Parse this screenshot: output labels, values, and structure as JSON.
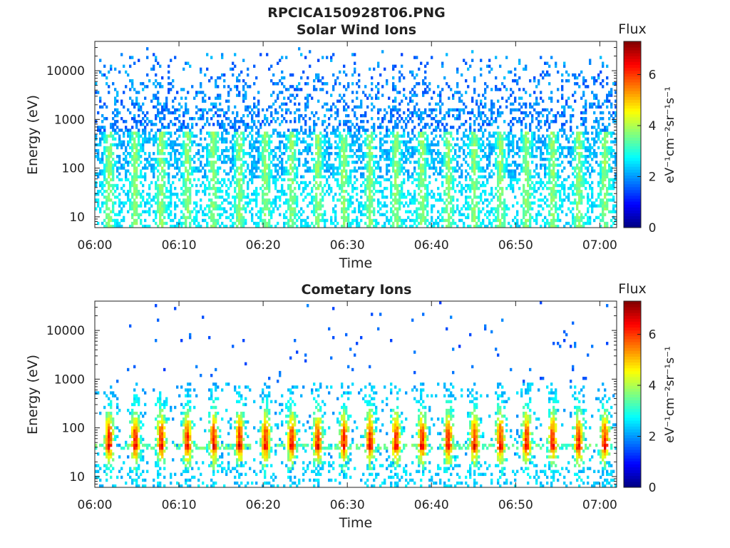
{
  "figure_title": "RPCICA150928T06.PNG",
  "chart_data": [
    {
      "type": "heatmap",
      "title": "Solar Wind Ions",
      "xlabel": "Time",
      "ylabel": "Energy (eV)",
      "x_ticks": [
        "06:00",
        "06:10",
        "06:20",
        "06:30",
        "06:40",
        "06:50",
        "07:00"
      ],
      "x_range_minutes": [
        0,
        62
      ],
      "y_ticks": [
        "10",
        "100",
        "1000",
        "10000"
      ],
      "y_tick_values": [
        10,
        100,
        1000,
        10000
      ],
      "y_scale": "log",
      "y_range": [
        6,
        40000
      ],
      "colorbar": {
        "label": "Flux",
        "unit": "eV⁻¹cm⁻²sr⁻¹s⁻¹",
        "ticks": [
          "0",
          "2",
          "4",
          "6"
        ],
        "range": [
          0,
          7.3
        ],
        "colormap": "jet"
      },
      "pattern": {
        "pulse_period_min": 3.1,
        "pulse_phase_min": 0.9,
        "peak_flux": 3.9,
        "background_flux": 2.0,
        "low_energy_floor": 6
      }
    },
    {
      "type": "heatmap",
      "title": "Cometary Ions",
      "xlabel": "Time",
      "ylabel": "Energy (eV)",
      "x_ticks": [
        "06:00",
        "06:10",
        "06:20",
        "06:30",
        "06:40",
        "06:50",
        "07:00"
      ],
      "x_range_minutes": [
        0,
        62
      ],
      "y_ticks": [
        "10",
        "100",
        "1000",
        "10000"
      ],
      "y_tick_values": [
        10,
        100,
        1000,
        10000
      ],
      "y_scale": "log",
      "y_range": [
        6,
        40000
      ],
      "colorbar": {
        "label": "Flux",
        "unit": "eV⁻¹cm⁻²sr⁻¹s⁻¹",
        "ticks": [
          "0",
          "2",
          "4",
          "6"
        ],
        "range": [
          0,
          7.3
        ],
        "colormap": "jet"
      },
      "pattern": {
        "pulse_period_min": 3.1,
        "pulse_phase_min": 0.9,
        "peak_flux": 5.6,
        "peak_energy_ev": 60,
        "band_energy_ev": 42
      }
    }
  ]
}
